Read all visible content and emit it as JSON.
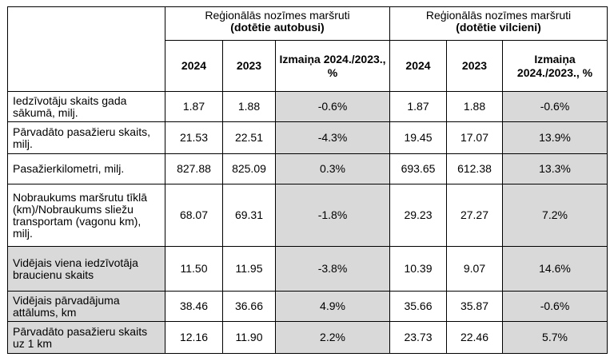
{
  "header": {
    "group1": {
      "title": "Reģionālās nozīmes maršruti",
      "subtitle": "(dotētie autobusi)"
    },
    "group2": {
      "title": "Reģionālās nozīmes maršruti",
      "subtitle": "(dotētie vilcieni)"
    },
    "year1": "2024",
    "year2": "2023",
    "change": "Izmaiņa 2024./2023., %"
  },
  "rows": [
    {
      "label": "Iedzīvotāju skaits gada sākumā, milj.",
      "bus_2024": "1.87",
      "bus_2023": "1.88",
      "bus_change": "-0.6%",
      "train_2024": "1.87",
      "train_2023": "1.88",
      "train_change": "-0.6%",
      "shaded": false
    },
    {
      "label": "Pārvadāto pasažieru skaits, milj.",
      "bus_2024": "21.53",
      "bus_2023": "22.51",
      "bus_change": "-4.3%",
      "train_2024": "19.45",
      "train_2023": "17.07",
      "train_change": "13.9%",
      "shaded": false
    },
    {
      "label": "Pasažierkilometri, milj.",
      "bus_2024": "827.88",
      "bus_2023": "825.09",
      "bus_change": "0.3%",
      "train_2024": "693.65",
      "train_2023": "612.38",
      "train_change": "13.3%",
      "shaded": false
    },
    {
      "label": "Nobraukums maršrutu tīklā (km)/Nobraukums sliežu transportam (vagonu km), milj.",
      "bus_2024": "68.07",
      "bus_2023": "69.31",
      "bus_change": "-1.8%",
      "train_2024": "29.23",
      "train_2023": "27.27",
      "train_change": "7.2%",
      "shaded": false
    },
    {
      "label": "Vidējais viena iedzīvotāja braucienu skaits",
      "bus_2024": "11.50",
      "bus_2023": "11.95",
      "bus_change": "-3.8%",
      "train_2024": "10.39",
      "train_2023": "9.07",
      "train_change": "14.6%",
      "shaded": true
    },
    {
      "label": "Vidējais pārvadājuma attālums, km",
      "bus_2024": "38.46",
      "bus_2023": "36.66",
      "bus_change": "4.9%",
      "train_2024": "35.66",
      "train_2023": "35.87",
      "train_change": "-0.6%",
      "shaded": true
    },
    {
      "label": "Pārvadāto pasažieru skaits uz 1 km",
      "bus_2024": "12.16",
      "bus_2023": "11.90",
      "bus_change": "2.2%",
      "train_2024": "23.73",
      "train_2023": "22.46",
      "train_change": "5.7%",
      "shaded": true
    }
  ],
  "colors": {
    "shade": "#d9d9d9",
    "border": "#000000"
  }
}
